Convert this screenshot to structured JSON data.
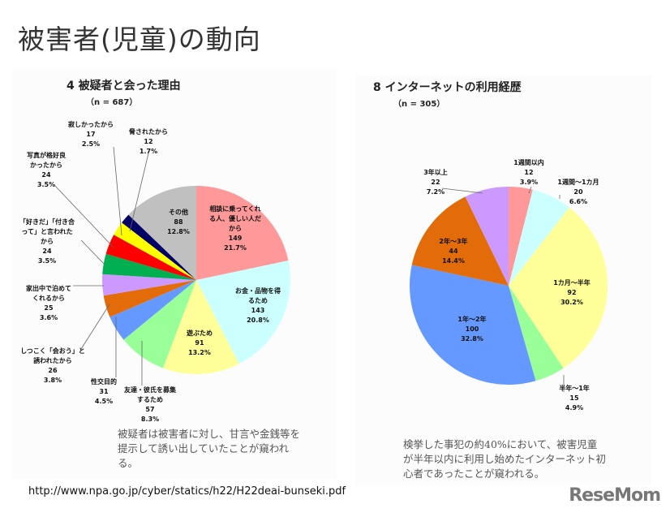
{
  "page_title": "被害者(児童)の動向",
  "source_url": "http://www.npa.go.jp/cyber/statics/h22/H22deai-bunseki.pdf",
  "logo": "ReseMom",
  "chart_data": [
    {
      "type": "pie",
      "title": "4 被疑者と会った理由",
      "subtitle": "（n = 687）",
      "slices": [
        {
          "label": "相談に乗ってくれる人、優しい人だから",
          "value": 149,
          "pct": "21.7%",
          "color": "#ff9999"
        },
        {
          "label": "お金・品物を得るため",
          "value": 143,
          "pct": "20.8%",
          "color": "#ccffff"
        },
        {
          "label": "遊ぶため",
          "value": 91,
          "pct": "13.2%",
          "color": "#ffff99"
        },
        {
          "label": "友達・彼氏を募集するため",
          "value": 57,
          "pct": "8.3%",
          "color": "#99ff99"
        },
        {
          "label": "性交目的",
          "value": 31,
          "pct": "4.5%",
          "color": "#6699ff"
        },
        {
          "label": "しつこく「会おう」と誘われたから",
          "value": 26,
          "pct": "3.8%",
          "color": "#e26b0a"
        },
        {
          "label": "家出中で泊めてくれるから",
          "value": 25,
          "pct": "3.6%",
          "color": "#cc99ff"
        },
        {
          "label": "「好きだ」「付き合って」と言われたから",
          "value": 24,
          "pct": "3.5%",
          "color": "#00b050"
        },
        {
          "label": "写真が格好良かったから",
          "value": 24,
          "pct": "3.5%",
          "color": "#ff0000"
        },
        {
          "label": "寂しかったから",
          "value": 17,
          "pct": "2.5%",
          "color": "#ffff00"
        },
        {
          "label": "脅されたから",
          "value": 12,
          "pct": "1.7%",
          "color": "#000066"
        },
        {
          "label": "その他",
          "value": 88,
          "pct": "12.8%",
          "color": "#c0c0c0"
        }
      ],
      "caption": "被疑者は被害者に対し、甘言や金銭等を提示して誘い出していたことが窺われる。"
    },
    {
      "type": "pie",
      "title": "8 インターネットの利用経歴",
      "subtitle": "（n = 305）",
      "slices": [
        {
          "label": "1週間以内",
          "value": 12,
          "pct": "3.9%",
          "color": "#ff9999"
        },
        {
          "label": "1週間～1カ月",
          "value": 20,
          "pct": "6.6%",
          "color": "#ccffff"
        },
        {
          "label": "1カ月～半年",
          "value": 92,
          "pct": "30.2%",
          "color": "#ffff99"
        },
        {
          "label": "半年～1年",
          "value": 15,
          "pct": "4.9%",
          "color": "#99ff99"
        },
        {
          "label": "1年～2年",
          "value": 100,
          "pct": "32.8%",
          "color": "#6699ff"
        },
        {
          "label": "2年～3年",
          "value": 44,
          "pct": "14.4%",
          "color": "#e26b0a"
        },
        {
          "label": "3年以上",
          "value": 22,
          "pct": "7.2%",
          "color": "#cc99ff"
        }
      ],
      "caption": "検挙した事犯の約40%において、被害児童が半年以内に利用し始めたインターネット初心者であったことが窺われる。"
    }
  ]
}
